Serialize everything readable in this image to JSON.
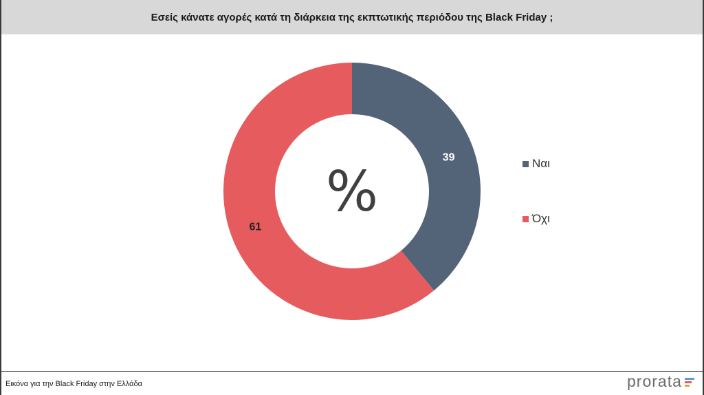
{
  "header": {
    "title": "Εσείς κάνατε αγορές κατά τη διάρκεια της εκπτωτικής περιόδου της Black Friday ;"
  },
  "chart_data": {
    "type": "pie",
    "style": "donut",
    "center_symbol": "%",
    "categories": [
      "Ναι",
      "Όχι"
    ],
    "values": [
      39,
      61
    ],
    "colors": [
      "#546478",
      "#e65c5e"
    ],
    "legend_position": "right"
  },
  "footer": {
    "caption": "Εικόνα για την Black Friday στην Ελλάδα",
    "brand": "prorata",
    "brand_colors": [
      "#5aa0d6",
      "#e65c5e",
      "#d4a84a"
    ]
  }
}
